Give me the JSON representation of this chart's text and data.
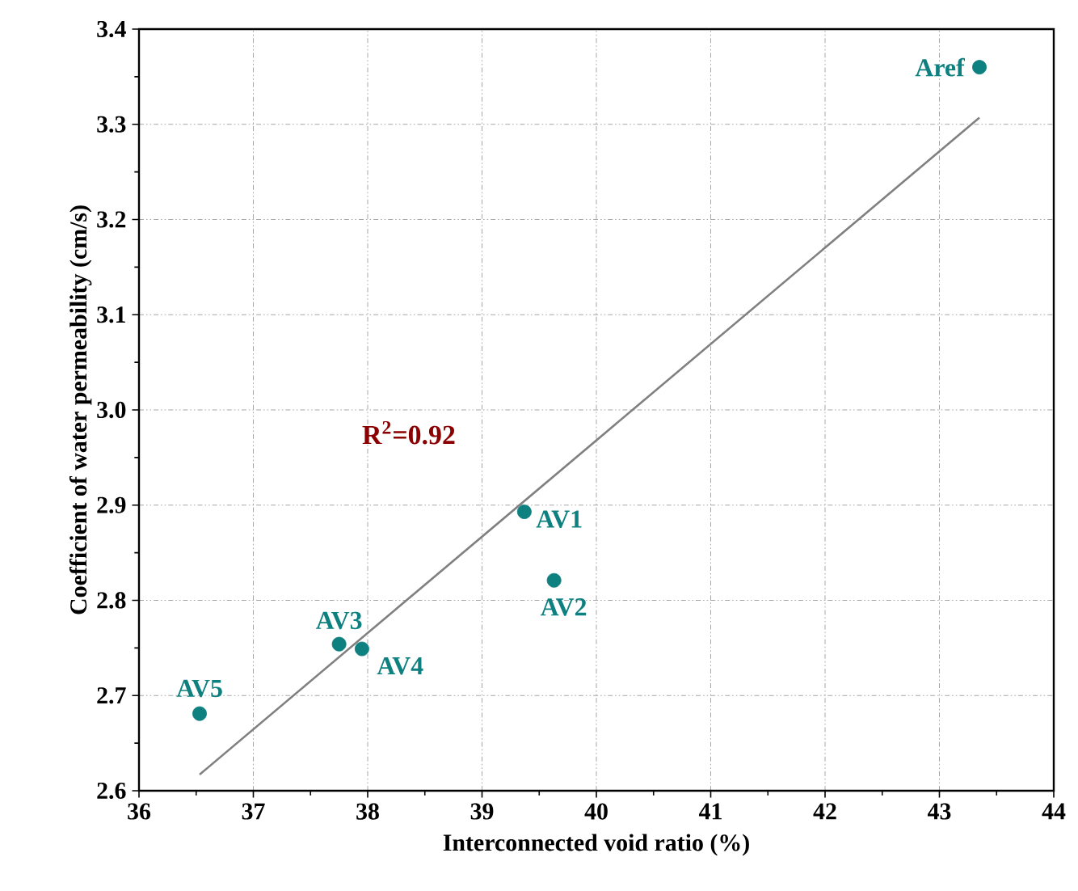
{
  "chart_data": {
    "type": "scatter",
    "xlabel": "Interconnected void ratio (%)",
    "ylabel": "Coefficient of water permeability (cm/s)",
    "xlim": [
      36,
      44
    ],
    "ylim": [
      2.6,
      3.4
    ],
    "xticks": [
      36,
      37,
      38,
      39,
      40,
      41,
      42,
      43,
      44
    ],
    "yticks": [
      2.6,
      2.7,
      2.8,
      2.9,
      {
        "value": 3.0,
        "label": "3.0"
      },
      3.1,
      3.2,
      3.3,
      3.4
    ],
    "grid": true,
    "series": [
      {
        "marker": "circle",
        "color": "#0e8080",
        "x": [
          43.35,
          39.37,
          39.63,
          37.75,
          37.95,
          36.53
        ],
        "values": [
          3.36,
          2.893,
          2.821,
          2.754,
          2.749,
          2.681
        ]
      },
      {
        "type": "line",
        "color": "#808080",
        "marker": "none",
        "x": [
          36.53,
          43.35
        ],
        "values": [
          2.617,
          3.307
        ]
      }
    ],
    "annotations": [
      {
        "text": "Aref",
        "x": 43.35,
        "y": 3.36
      },
      {
        "text": "AV1",
        "x": 39.37,
        "y": 2.893
      },
      {
        "text": "AV2",
        "x": 39.63,
        "y": 2.821
      },
      {
        "text": "AV3",
        "x": 37.75,
        "y": 2.754
      },
      {
        "text": "AV4",
        "x": 37.95,
        "y": 2.749
      },
      {
        "text": "AV5",
        "x": 36.53,
        "y": 2.681
      },
      "R$^{2}$=0.92"
    ]
  }
}
